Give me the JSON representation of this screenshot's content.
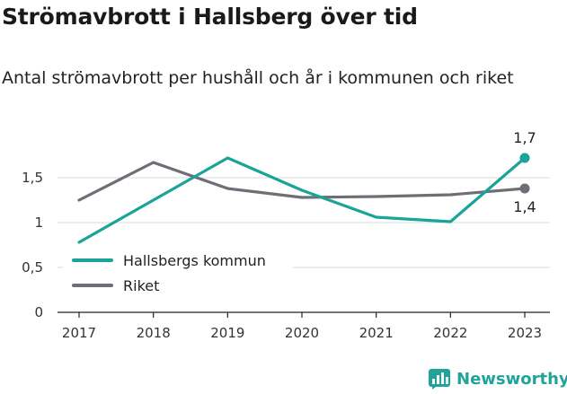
{
  "title": "Strömavbrott i Hallsberg över tid",
  "subtitle": "Antal strömavbrott per hushåll och år i kommunen och riket",
  "brand": "Newsworthy",
  "colors": {
    "kommun": "#1aa399",
    "riket": "#6f6d75",
    "axis": "#222222",
    "grid": "#d9d9d9"
  },
  "chart_data": {
    "type": "line",
    "title": "Strömavbrott i Hallsberg över tid",
    "subtitle": "Antal strömavbrott per hushåll och år i kommunen och riket",
    "xlabel": "",
    "ylabel": "",
    "x": [
      "2017",
      "2018",
      "2019",
      "2020",
      "2021",
      "2022",
      "2023"
    ],
    "ylim": [
      0,
      1.9
    ],
    "yticks": [
      0,
      0.5,
      1,
      1.5
    ],
    "ytick_labels": [
      "0",
      "0,5",
      "1",
      "1,5"
    ],
    "grid": "horizontal",
    "legend": "bottom-left",
    "series": [
      {
        "name": "Hallsbergs kommun",
        "color": "#1aa399",
        "values": [
          0.78,
          1.25,
          1.72,
          1.36,
          1.06,
          1.01,
          1.72
        ],
        "end_label": "1,7"
      },
      {
        "name": "Riket",
        "color": "#6f6d75",
        "values": [
          1.25,
          1.67,
          1.38,
          1.28,
          1.29,
          1.31,
          1.38
        ],
        "end_label": "1,4"
      }
    ]
  }
}
